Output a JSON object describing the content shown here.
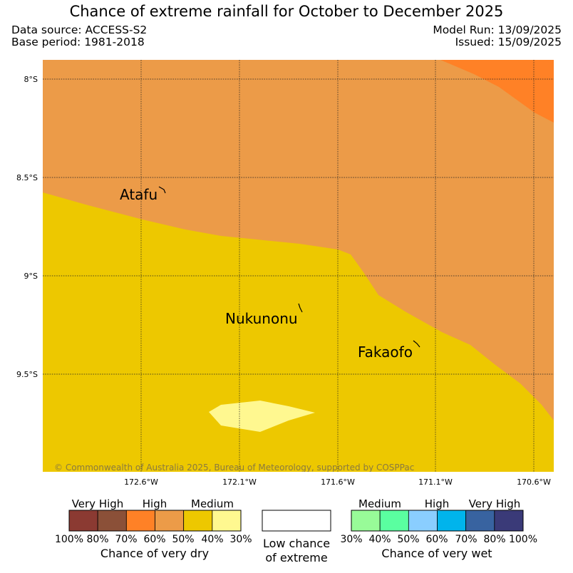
{
  "header": {
    "title": "Chance of extreme rainfall for October to December 2025",
    "data_source": "Data source: ACCESS-S2",
    "base_period": "Base period: 1981-2018",
    "model_run": "Model Run: 13/09/2025",
    "issued": "Issued: 15/09/2025"
  },
  "map": {
    "lat_labels": [
      "8°S",
      "8.5°S",
      "9°S",
      "9.5°S"
    ],
    "lon_labels": [
      "172.6°W",
      "172.1°W",
      "171.6°W",
      "171.1°W",
      "170.6°W"
    ],
    "places": [
      "Atafu",
      "Nukunonu",
      "Fakaofo"
    ],
    "copyright": "© Commonwealth of Australia 2025, Bureau of Meteorology, supported by COSPPac",
    "colors": {
      "dry_70_80": "#FF8126",
      "dry_60_70": "#EC9B48",
      "dry_40_50": "#EDC800",
      "dry_30_40": "#FFF890"
    }
  },
  "legend": {
    "dry": {
      "labels": [
        "Very High",
        "High",
        "Medium"
      ],
      "ticks": [
        "100%",
        "80%",
        "70%",
        "60%",
        "50%",
        "40%",
        "30%"
      ],
      "caption": "Chance of very dry",
      "colors": [
        "#8B3A32",
        "#8B5038",
        "#FF8126",
        "#EC9B48",
        "#EDC800",
        "#FFF890"
      ]
    },
    "low": {
      "line1": "Low chance",
      "line2": "of extreme",
      "color": "#FFFFFF"
    },
    "wet": {
      "labels": [
        "Medium",
        "High",
        "Very High"
      ],
      "ticks": [
        "30%",
        "40%",
        "50%",
        "60%",
        "70%",
        "80%",
        "100%"
      ],
      "caption": "Chance of very wet",
      "colors": [
        "#98FB98",
        "#5AFFA0",
        "#8ACEFF",
        "#00B4EC",
        "#3863A0",
        "#3A3A78"
      ]
    }
  }
}
